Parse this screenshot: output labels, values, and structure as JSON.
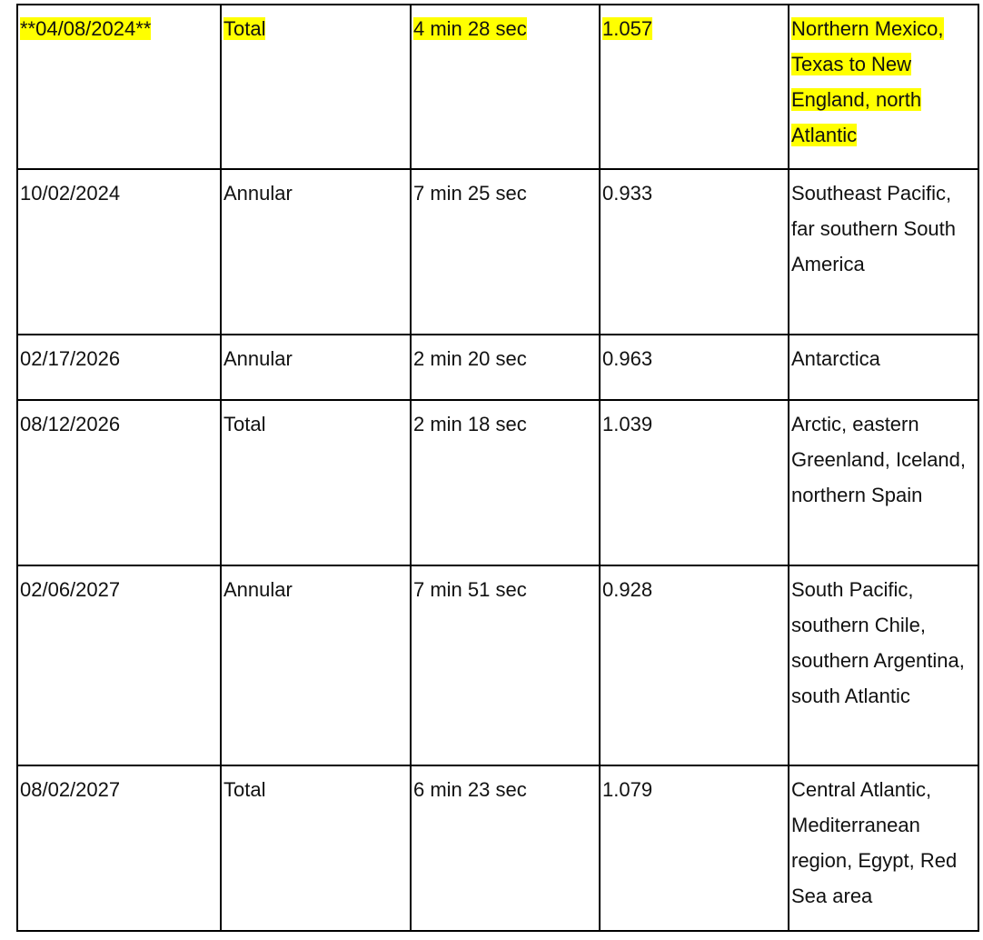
{
  "table": {
    "rows": [
      {
        "date": "**04/08/2024**",
        "type": "Total",
        "duration": "4 min 28 sec",
        "magnitude": "1.057",
        "region": "Northern Mexico, Texas to New England, north Atlantic",
        "highlighted": true
      },
      {
        "date": "10/02/2024",
        "type": "Annular",
        "duration": "7 min 25 sec",
        "magnitude": "0.933",
        "region": "Southeast Pacific, far southern South America",
        "highlighted": false
      },
      {
        "date": "02/17/2026",
        "type": "Annular",
        "duration": "2 min 20 sec",
        "magnitude": "0.963",
        "region": "Antarctica",
        "highlighted": false
      },
      {
        "date": "08/12/2026",
        "type": "Total",
        "duration": "2 min 18 sec",
        "magnitude": "1.039",
        "region": "Arctic, eastern Greenland, Iceland, northern Spain",
        "highlighted": false
      },
      {
        "date": "02/06/2027",
        "type": "Annular",
        "duration": "7 min 51 sec",
        "magnitude": "0.928",
        "region": "South Pacific, southern Chile, southern Argentina, south Atlantic",
        "highlighted": false
      },
      {
        "date": "08/02/2027",
        "type": "Total",
        "duration": "6 min 23 sec",
        "magnitude": "1.079",
        "region": "Central Atlantic, Mediterranean region, Egypt, Red Sea area",
        "highlighted": false
      }
    ],
    "highlight_color": "#ffff00"
  }
}
